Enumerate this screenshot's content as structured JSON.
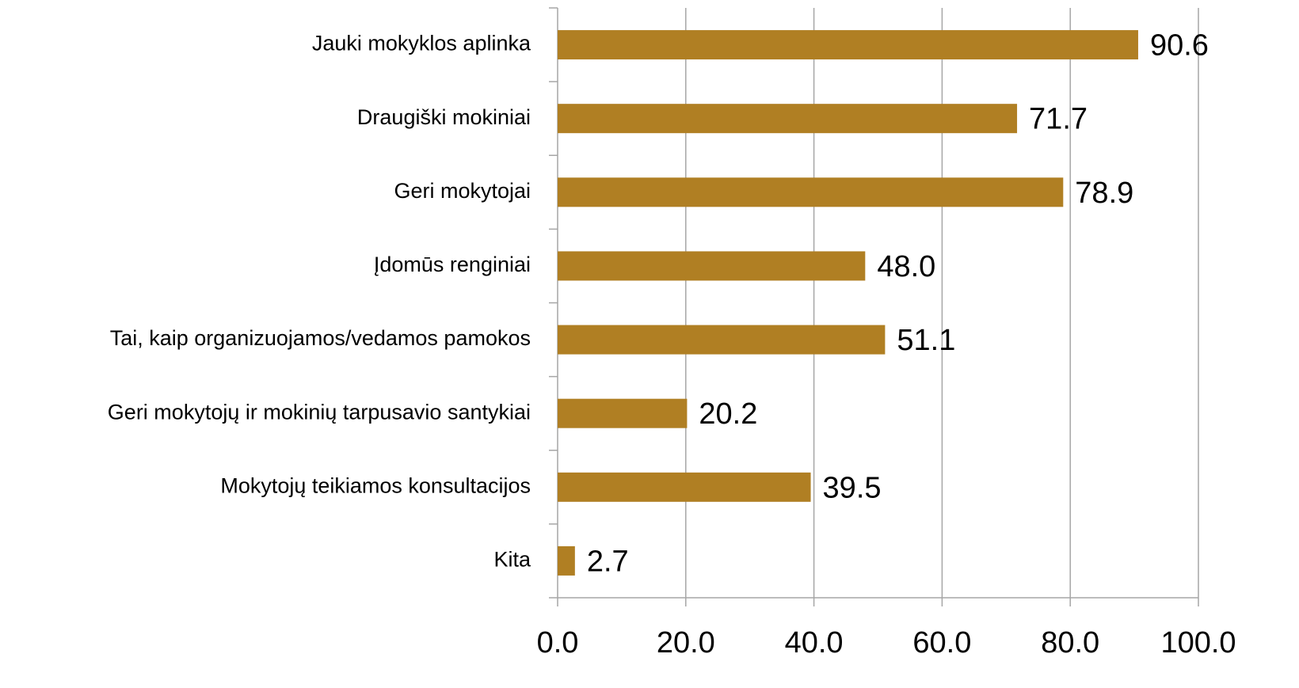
{
  "chart_data": {
    "type": "bar",
    "orientation": "horizontal",
    "categories": [
      "Jauki mokyklos aplinka",
      "Draugiški mokiniai",
      "Geri mokytojai",
      "Įdomūs renginiai",
      "Tai, kaip organizuojamos/vedamos pamokos",
      "Geri mokytojų ir mokinių tarpusavio santykiai",
      "Mokytojų teikiamos konsultacijos",
      "Kita"
    ],
    "values": [
      90.6,
      71.7,
      78.9,
      48,
      51.1,
      20.2,
      39.5,
      2.7
    ],
    "value_labels": [
      "90.6",
      "71.7",
      "78.9",
      "48.0",
      "51.1",
      "20.2",
      "39.5",
      "2.7"
    ],
    "color": "#b07f23",
    "xlim": [
      0,
      100
    ],
    "xticks": [
      {
        "value": 0,
        "label": "0.0"
      },
      {
        "value": 20,
        "label": "20.0"
      },
      {
        "value": 40,
        "label": "40.0"
      },
      {
        "value": 60,
        "label": "60.0"
      },
      {
        "value": 80,
        "label": "80.0"
      },
      {
        "value": 100,
        "label": "100.0"
      }
    ],
    "grid": true
  }
}
